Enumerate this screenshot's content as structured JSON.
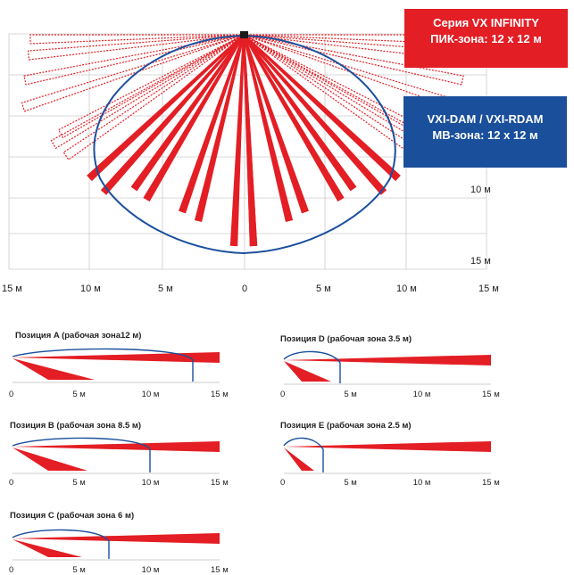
{
  "legend": {
    "pir_series": "Серия VX INFINITY",
    "pir_zone": "ПИК-зона: 12 x 12 м",
    "mw_models": "VXI-DAM / VXI-RDAM",
    "mw_zone": "МВ-зона: 12 x 12 м"
  },
  "main_axis": {
    "y_labels": [
      "10 м",
      "15 м"
    ],
    "x_labels": [
      "15 м",
      "10 м",
      "5 м",
      "0",
      "5 м",
      "10 м",
      "15 м"
    ]
  },
  "positions": [
    {
      "title": "Позиция A  (рабочая зона12 м)",
      "zone_m": 12
    },
    {
      "title": "Позиция B (рабочая зона 8.5 м)",
      "zone_m": 8.5
    },
    {
      "title": "Позиция C (рабочая зона 6 м)",
      "zone_m": 6
    },
    {
      "title": "Позиция D (рабочая зона 3.5 м)",
      "zone_m": 3.5
    },
    {
      "title": "Позиция E (рабочая зона 2.5 м)",
      "zone_m": 2.5
    }
  ],
  "side_ticks": [
    "0",
    "5 м",
    "10 м",
    "15 м"
  ],
  "colors": {
    "pir": "#e31e24",
    "mw": "#1a4f9c",
    "grid": "#cccccc"
  }
}
